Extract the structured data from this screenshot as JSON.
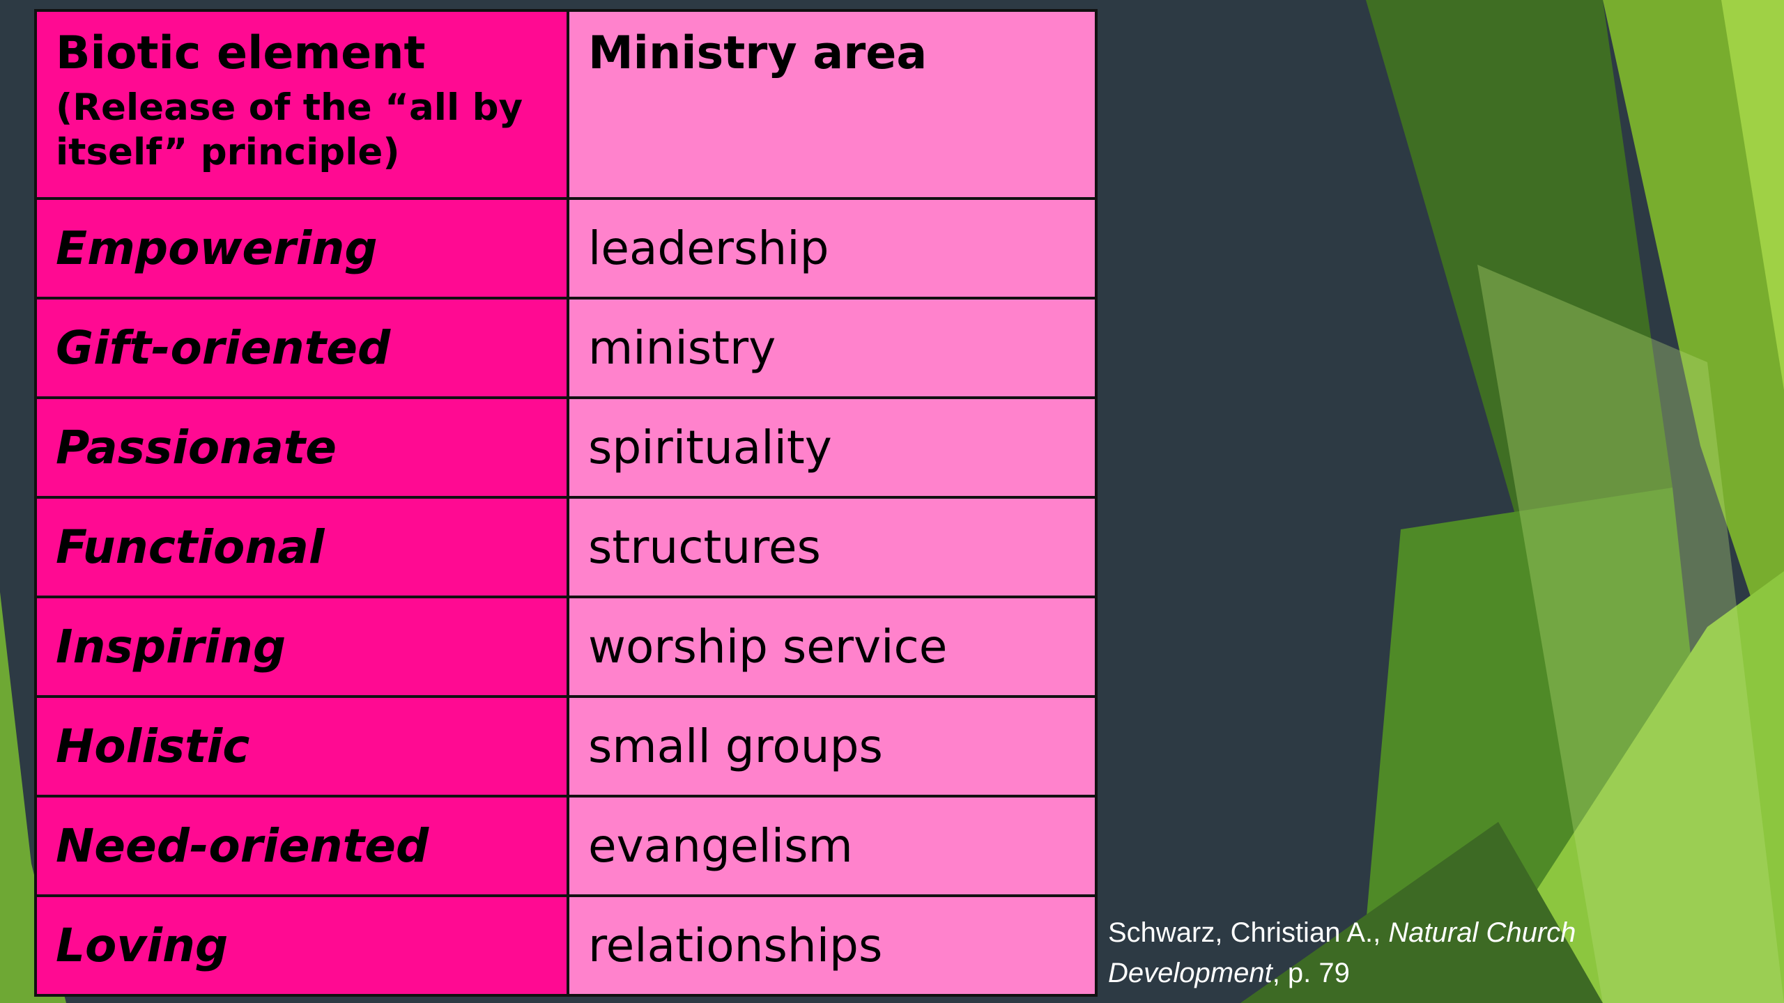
{
  "table": {
    "header": {
      "left_title": "Biotic element",
      "left_subtitle": "(Release of the “all by itself” principle)",
      "right_title": "Ministry area"
    },
    "rows": [
      {
        "element": "Empowering",
        "area": "leadership"
      },
      {
        "element": "Gift-oriented",
        "area": "ministry"
      },
      {
        "element": "Passionate",
        "area": "spirituality"
      },
      {
        "element": "Functional",
        "area": "structures"
      },
      {
        "element": "Inspiring",
        "area": "worship service"
      },
      {
        "element": "Holistic",
        "area": "small groups"
      },
      {
        "element": "Need-oriented",
        "area": "evangelism"
      },
      {
        "element": "Loving",
        "area": "relationships"
      }
    ]
  },
  "citation": {
    "author": "Schwarz, Christian A., ",
    "title": "Natural Church Development",
    "page": ", p. 79"
  },
  "colors": {
    "background": "#2d3a44",
    "header_left": "#ff0a92",
    "header_right": "#ff82cc",
    "accent_green": "#8cc63f"
  }
}
